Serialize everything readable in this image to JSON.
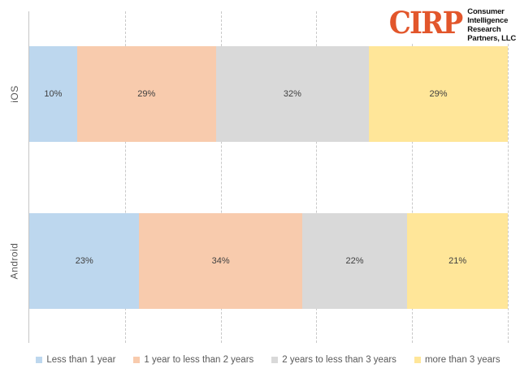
{
  "logo": {
    "brand": "CIRP",
    "brand_color": "#E2562B",
    "company_lines": [
      "Consumer",
      "Intelligence",
      "Research",
      "Partners, LLC"
    ]
  },
  "chart_data": {
    "type": "bar",
    "orientation": "horizontal",
    "stacked": true,
    "title": "",
    "xlabel": "",
    "ylabel": "",
    "categories": [
      "iOS",
      "Android"
    ],
    "series": [
      {
        "name": "Less than 1 year",
        "color": "#BDD7EE",
        "values": [
          10,
          23
        ]
      },
      {
        "name": "1 year to less than 2 years",
        "color": "#F8CBAD",
        "values": [
          29,
          34
        ]
      },
      {
        "name": "2 years to less than 3 years",
        "color": "#D9D9D9",
        "values": [
          32,
          22
        ]
      },
      {
        "name": "more than 3 years",
        "color": "#FFE699",
        "values": [
          29,
          21
        ]
      }
    ],
    "value_suffix": "%",
    "xlim": [
      0,
      100
    ],
    "gridline_interval_pct": 20,
    "grid": true,
    "legend_position": "bottom"
  }
}
